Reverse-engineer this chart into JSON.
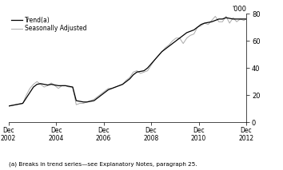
{
  "ylabel_right": "'000",
  "ylim": [
    0,
    80
  ],
  "yticks": [
    0,
    20,
    40,
    60,
    80
  ],
  "xlabel_dates": [
    "Dec\n2002",
    "Dec\n2004",
    "Dec\n2006",
    "Dec\n2008",
    "Dec\n2010",
    "Dec\n2012"
  ],
  "footnote": "(a) Breaks in trend series—see Explanatory Notes, paragraph 25.",
  "legend": [
    "Trend(a)",
    "Seasonally Adjusted"
  ],
  "trend_color": "#000000",
  "seasonal_color": "#aaaaaa",
  "background_color": "#ffffff",
  "trend_data": [
    [
      0,
      12
    ],
    [
      3,
      12.5
    ],
    [
      6,
      13
    ],
    [
      9,
      13.5
    ],
    [
      12,
      14
    ],
    [
      15,
      18
    ],
    [
      18,
      22
    ],
    [
      21,
      26
    ],
    [
      24,
      28
    ],
    [
      27,
      28.5
    ],
    [
      30,
      28
    ],
    [
      33,
      27.5
    ],
    [
      36,
      28
    ],
    [
      39,
      27.5
    ],
    [
      42,
      27
    ],
    [
      45,
      27
    ],
    [
      48,
      27
    ],
    [
      51,
      26.5
    ],
    [
      54,
      26
    ],
    [
      57,
      16
    ],
    [
      60,
      15.5
    ],
    [
      63,
      15
    ],
    [
      66,
      15
    ],
    [
      69,
      15.5
    ],
    [
      72,
      16
    ],
    [
      75,
      18
    ],
    [
      78,
      20
    ],
    [
      81,
      22
    ],
    [
      84,
      24
    ],
    [
      87,
      25
    ],
    [
      90,
      26
    ],
    [
      93,
      27
    ],
    [
      96,
      28
    ],
    [
      99,
      30
    ],
    [
      102,
      32
    ],
    [
      105,
      35
    ],
    [
      108,
      37
    ],
    [
      111,
      37.5
    ],
    [
      114,
      38
    ],
    [
      117,
      40
    ],
    [
      120,
      43
    ],
    [
      123,
      46
    ],
    [
      126,
      49
    ],
    [
      129,
      52
    ],
    [
      132,
      54
    ],
    [
      135,
      56
    ],
    [
      138,
      58
    ],
    [
      141,
      60
    ],
    [
      144,
      62
    ],
    [
      147,
      64
    ],
    [
      150,
      66
    ],
    [
      153,
      67
    ],
    [
      156,
      68
    ],
    [
      159,
      70
    ],
    [
      162,
      72
    ],
    [
      165,
      73
    ],
    [
      168,
      73.5
    ],
    [
      171,
      74
    ],
    [
      174,
      75
    ],
    [
      177,
      76
    ],
    [
      180,
      76
    ],
    [
      183,
      77
    ],
    [
      186,
      76.5
    ],
    [
      189,
      76
    ],
    [
      192,
      76
    ],
    [
      195,
      76
    ],
    [
      198,
      76
    ],
    [
      200,
      76
    ]
  ],
  "seasonal_data": [
    [
      0,
      12
    ],
    [
      3,
      12.5
    ],
    [
      6,
      13
    ],
    [
      9,
      13.5
    ],
    [
      12,
      14
    ],
    [
      15,
      20
    ],
    [
      18,
      25
    ],
    [
      21,
      28
    ],
    [
      24,
      30
    ],
    [
      27,
      28
    ],
    [
      30,
      26
    ],
    [
      33,
      27
    ],
    [
      36,
      29
    ],
    [
      39,
      27
    ],
    [
      42,
      25
    ],
    [
      45,
      27
    ],
    [
      48,
      27
    ],
    [
      51,
      26
    ],
    [
      54,
      26
    ],
    [
      57,
      13
    ],
    [
      60,
      14
    ],
    [
      63,
      14
    ],
    [
      66,
      15
    ],
    [
      69,
      16
    ],
    [
      72,
      17
    ],
    [
      75,
      19
    ],
    [
      78,
      21
    ],
    [
      81,
      23
    ],
    [
      84,
      25
    ],
    [
      87,
      25
    ],
    [
      90,
      26
    ],
    [
      93,
      27
    ],
    [
      96,
      28
    ],
    [
      99,
      31
    ],
    [
      102,
      33
    ],
    [
      105,
      37
    ],
    [
      108,
      38
    ],
    [
      111,
      36
    ],
    [
      114,
      37
    ],
    [
      117,
      38
    ],
    [
      120,
      42
    ],
    [
      123,
      46
    ],
    [
      126,
      49
    ],
    [
      129,
      52
    ],
    [
      132,
      55
    ],
    [
      135,
      57
    ],
    [
      138,
      60
    ],
    [
      141,
      62
    ],
    [
      144,
      62
    ],
    [
      147,
      58
    ],
    [
      150,
      62
    ],
    [
      153,
      64
    ],
    [
      156,
      65
    ],
    [
      159,
      70
    ],
    [
      162,
      71
    ],
    [
      165,
      73
    ],
    [
      168,
      72
    ],
    [
      171,
      75
    ],
    [
      174,
      78
    ],
    [
      177,
      74
    ],
    [
      180,
      74
    ],
    [
      183,
      78
    ],
    [
      186,
      73
    ],
    [
      189,
      77
    ],
    [
      192,
      74
    ],
    [
      195,
      76
    ],
    [
      198,
      75
    ],
    [
      200,
      76
    ]
  ]
}
